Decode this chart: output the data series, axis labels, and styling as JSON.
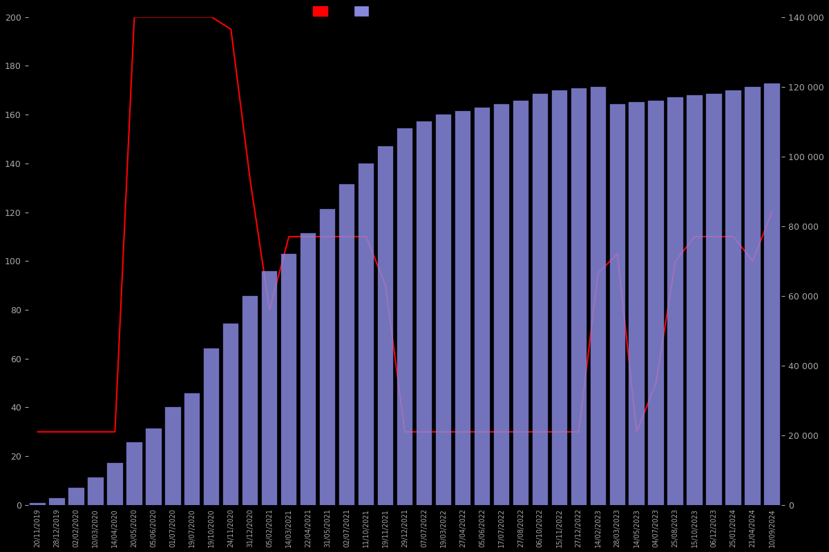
{
  "background_color": "#000000",
  "text_color": "#aaaaaa",
  "bar_color": "#8888dd",
  "bar_edge_color": "#6666cc",
  "line_color": "#ff0000",
  "left_ylim": [
    0,
    200
  ],
  "right_ylim": [
    0,
    140000
  ],
  "left_yticks": [
    0,
    20,
    40,
    60,
    80,
    100,
    120,
    140,
    160,
    180,
    200
  ],
  "right_yticks": [
    0,
    20000,
    40000,
    60000,
    80000,
    100000,
    120000,
    140000
  ],
  "dates": [
    "20/11/2019",
    "28/12/2019",
    "02/02/2020",
    "10/03/2020",
    "14/04/2020",
    "20/05/2020",
    "05/06/2020",
    "01/07/2020",
    "19/07/2020",
    "19/10/2020",
    "24/11/2020",
    "31/12/2020",
    "05/02/2021",
    "14/03/2021",
    "22/04/2021",
    "31/05/2021",
    "02/07/2021",
    "11/10/2021",
    "19/11/2021",
    "29/12/2021",
    "07/07/2022",
    "19/03/2022",
    "27/04/2022",
    "05/06/2022",
    "17/07/2022",
    "27/08/2022",
    "06/10/2022",
    "15/11/2022",
    "27/12/2022",
    "14/02/2023",
    "28/03/2023",
    "14/05/2023",
    "04/07/2023",
    "25/08/2023",
    "15/10/2023",
    "06/12/2023",
    "25/01/2024",
    "21/04/2024",
    "10/09/2024"
  ],
  "bar_heights": [
    500,
    2000,
    5000,
    8000,
    12000,
    18000,
    22000,
    28000,
    32000,
    45000,
    52000,
    60000,
    67000,
    72000,
    78000,
    85000,
    92000,
    98000,
    103000,
    108000,
    110000,
    112000,
    113000,
    114000,
    115000,
    116000,
    118000,
    119000,
    119500,
    120000,
    115000,
    115500,
    116000,
    117000,
    117500,
    118000,
    119000,
    120000,
    121000
  ],
  "prices": [
    30,
    30,
    30,
    30,
    30,
    200,
    200,
    200,
    200,
    200,
    195,
    133,
    80,
    110,
    110,
    110,
    110,
    110,
    90,
    30,
    30,
    30,
    30,
    30,
    30,
    30,
    30,
    30,
    30,
    95,
    103,
    30,
    50,
    100,
    110,
    110,
    110,
    100,
    120
  ]
}
